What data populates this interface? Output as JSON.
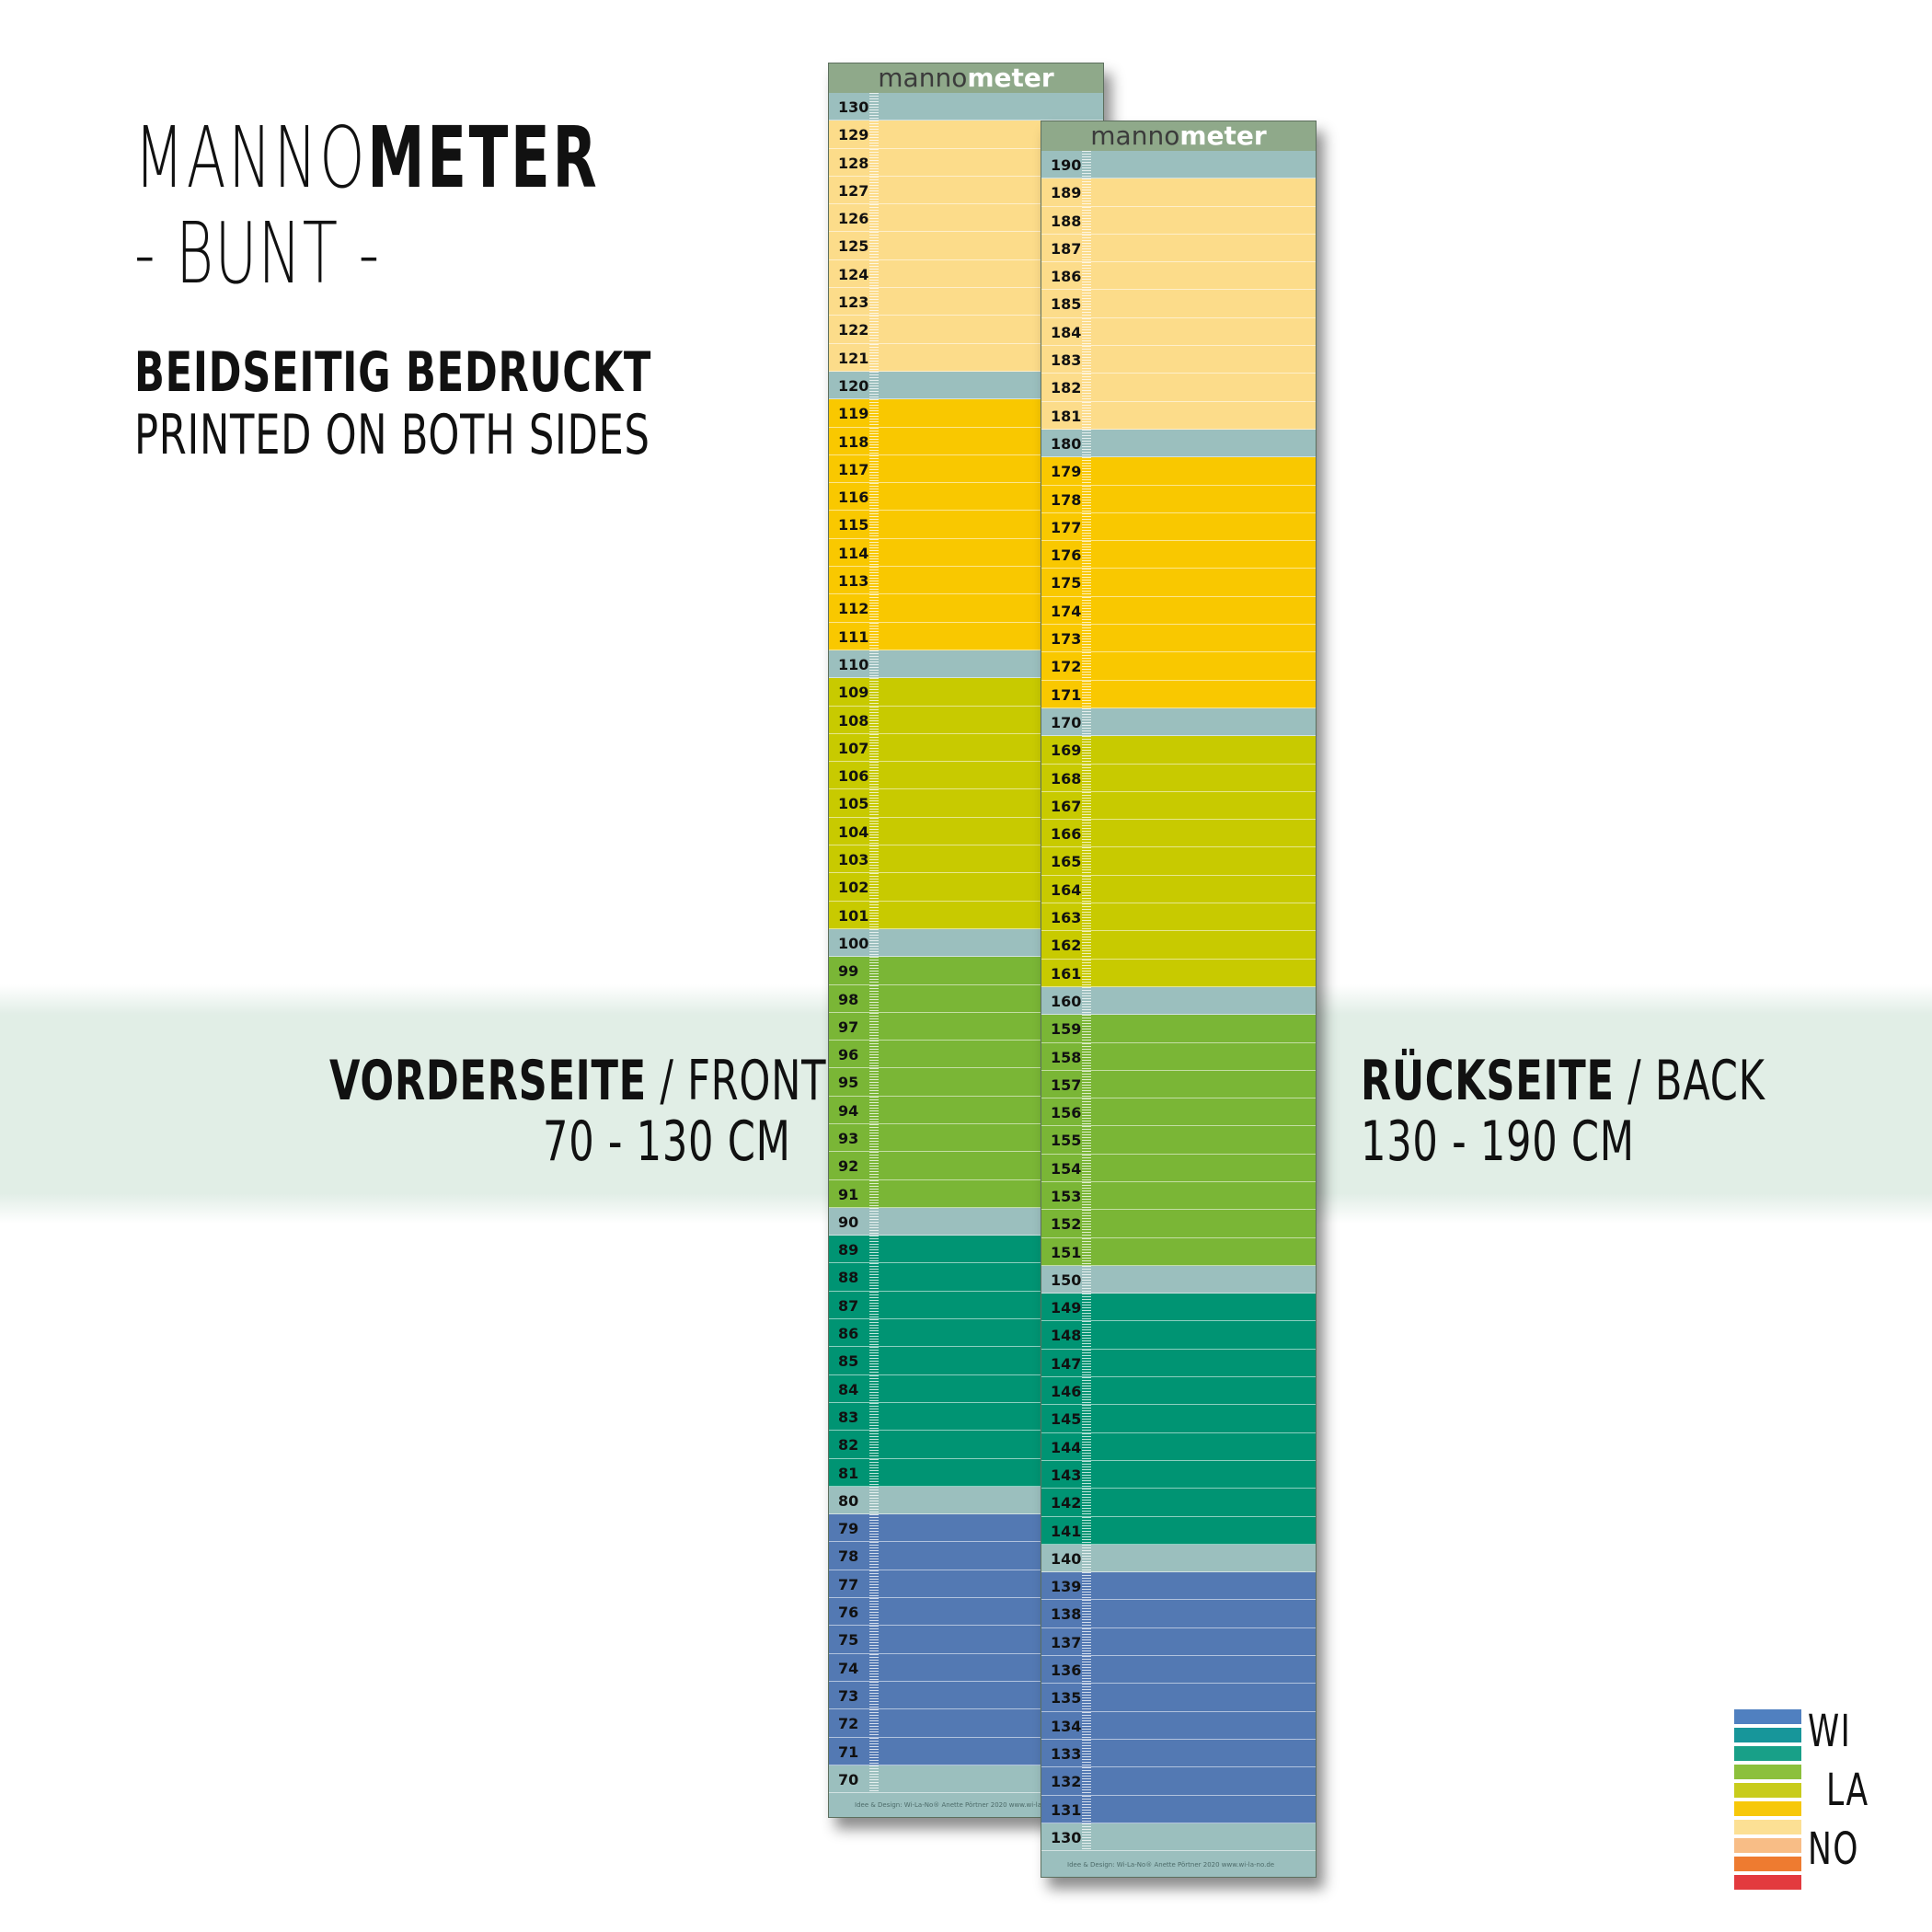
{
  "title": {
    "light": "MANNO",
    "bold": "METER"
  },
  "subtitle": "- BUNT -",
  "printed_both": {
    "de": "BEIDSEITIG BEDRUCKT",
    "en": "PRINTED ON BOTH SIDES"
  },
  "front_label": {
    "bold": "VORDERSEITE",
    "rest": " / FRONT",
    "range": "70 - 130 CM"
  },
  "back_label": {
    "bold": "RÜCKSEITE",
    "rest": " / BACK",
    "range": "130 - 190 CM"
  },
  "stick_brand": {
    "part1": "manno",
    "part2": "meter"
  },
  "stick_footer": {
    "front": "Idee & Design: Wi-La-No® Anette Pörtner 2020  www.wi-la-no.de",
    "back": "Idee & Design: Wi-La-No® Anette Pörtner 2020  www.wi-la-no.de"
  },
  "colors": {
    "teal_marker": "#9bbfbe",
    "pale_yellow": "#fcdc8a",
    "yellow": "#f9c800",
    "lime": "#c8ca00",
    "green": "#7ab636",
    "teal_green": "#009473",
    "blue": "#5379b3"
  },
  "front_scale": {
    "from": 130,
    "to": 70
  },
  "back_scale": {
    "from": 190,
    "to": 130
  },
  "logo": {
    "lines": [
      "WI",
      "LA",
      "NO"
    ],
    "bar_colors": [
      "#5080c0",
      "#17969a",
      "#18a088",
      "#8cc03c",
      "#c8cc1c",
      "#f7c809",
      "#fce094",
      "#f8bd86",
      "#ee7b30",
      "#e33a3e"
    ]
  }
}
